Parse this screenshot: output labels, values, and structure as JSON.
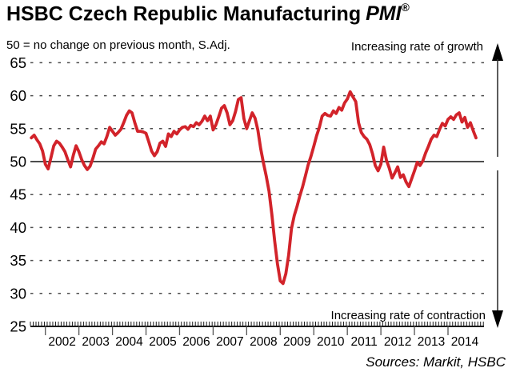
{
  "header": {
    "title_main": "HSBC Czech Republic Manufacturing",
    "title_pmi": "PMI",
    "title_reg": "®",
    "subtitle": "50 = no change on previous month, S.Adj."
  },
  "annotations": {
    "growth": "Increasing rate of growth",
    "contraction": "Increasing rate of contraction"
  },
  "footer": {
    "sources": "Sources: Markit, HSBC"
  },
  "chart_data": {
    "type": "line",
    "title": "HSBC Czech Republic Manufacturing PMI",
    "xlabel": "",
    "ylabel": "",
    "ylim": [
      25,
      65
    ],
    "yticks": [
      25,
      30,
      35,
      40,
      45,
      50,
      55,
      60,
      65
    ],
    "baseline": 50,
    "grid": "dashed-horizontal",
    "legend": "none",
    "line_color": "#d2232a",
    "axis_color": "#1a1a1a",
    "grid_color": "#4d4d4d",
    "x_year_labels": [
      "2002",
      "2003",
      "2004",
      "2005",
      "2006",
      "2007",
      "2008",
      "2009",
      "2010",
      "2011",
      "2012",
      "2013",
      "2014"
    ],
    "series_start": "2001-08",
    "series_end": "2014-11",
    "series_name": "Czech Republic Manufacturing PMI (S.Adj.)",
    "monthly_values": [
      53.6,
      54.0,
      53.3,
      52.7,
      51.6,
      49.6,
      48.9,
      50.6,
      52.4,
      53.1,
      52.8,
      52.2,
      51.5,
      50.3,
      49.2,
      51.0,
      52.4,
      51.5,
      50.3,
      49.4,
      48.8,
      49.3,
      50.5,
      51.9,
      52.4,
      53.0,
      52.7,
      53.8,
      55.2,
      54.6,
      54.0,
      54.4,
      54.9,
      55.9,
      57.0,
      57.7,
      57.4,
      55.9,
      54.6,
      54.6,
      54.5,
      54.3,
      53.0,
      51.6,
      50.9,
      51.5,
      52.8,
      53.1,
      52.3,
      54.2,
      53.8,
      54.6,
      54.2,
      54.8,
      55.2,
      55.3,
      54.9,
      55.5,
      55.3,
      55.9,
      55.6,
      56.1,
      56.9,
      56.2,
      56.9,
      54.8,
      55.6,
      56.8,
      58.1,
      58.5,
      57.4,
      55.6,
      56.2,
      57.6,
      59.4,
      59.7,
      56.5,
      55.0,
      56.2,
      57.4,
      56.6,
      54.8,
      52.0,
      49.8,
      47.8,
      45.5,
      42.0,
      38.0,
      34.5,
      31.9,
      31.5,
      33.0,
      35.8,
      39.8,
      41.8,
      43.2,
      44.8,
      46.2,
      47.8,
      49.5,
      50.8,
      52.3,
      53.9,
      55.2,
      56.9,
      57.3,
      57.0,
      56.9,
      57.7,
      57.3,
      58.2,
      57.8,
      58.9,
      59.5,
      60.6,
      59.8,
      59.1,
      55.9,
      54.4,
      53.8,
      53.4,
      52.6,
      51.2,
      49.4,
      48.6,
      49.6,
      52.2,
      50.2,
      49.0,
      47.5,
      48.3,
      49.2,
      47.6,
      48.0,
      46.9,
      46.2,
      47.4,
      48.6,
      49.9,
      49.4,
      50.1,
      51.3,
      52.3,
      53.4,
      54.0,
      53.8,
      54.9,
      55.8,
      55.4,
      56.4,
      56.8,
      56.4,
      57.1,
      57.4,
      56.0,
      56.7,
      55.2,
      55.9,
      54.7,
      53.6
    ]
  }
}
